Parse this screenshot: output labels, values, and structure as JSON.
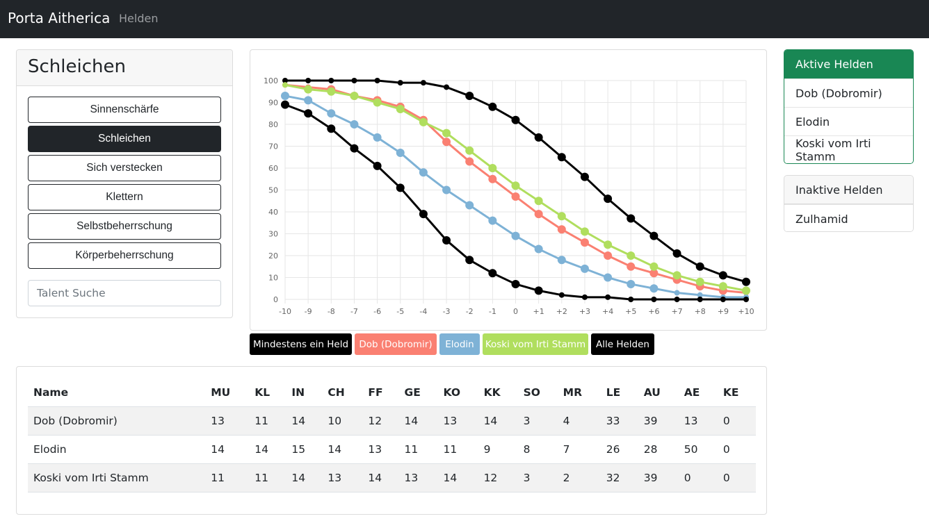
{
  "navbar": {
    "brand": "Porta Aitherica",
    "link_heroes": "Helden"
  },
  "talent_panel": {
    "title": "Schleichen",
    "buttons": [
      {
        "label": "Sinnenschärfe",
        "active": false
      },
      {
        "label": "Schleichen",
        "active": true
      },
      {
        "label": "Sich verstecken",
        "active": false
      },
      {
        "label": "Klettern",
        "active": false
      },
      {
        "label": "Selbstbeherrschung",
        "active": false
      },
      {
        "label": "Körperbeherrschung",
        "active": false
      }
    ],
    "search_placeholder": "Talent Suche"
  },
  "chart_data": {
    "type": "line",
    "categories": [
      "-10",
      "-9",
      "-8",
      "-7",
      "-6",
      "-5",
      "-4",
      "-3",
      "-2",
      "-1",
      "0",
      "+1",
      "+2",
      "+3",
      "+4",
      "+5",
      "+6",
      "+7",
      "+8",
      "+9",
      "+10"
    ],
    "ylim": [
      0,
      100
    ],
    "yticks": [
      0,
      10,
      20,
      30,
      40,
      50,
      60,
      70,
      80,
      90,
      100
    ],
    "grid": true,
    "series": [
      {
        "name": "Mindestens ein Held",
        "color": "#000000",
        "values": [
          100,
          100,
          100,
          100,
          100,
          99,
          99,
          97,
          93,
          88,
          82,
          74,
          65,
          56,
          46,
          37,
          29,
          21,
          15,
          11,
          8
        ]
      },
      {
        "name": "Dob (Dobromir)",
        "color": "#fa8072",
        "values": [
          98,
          97,
          96,
          93,
          91,
          88,
          82,
          72,
          63,
          55,
          47,
          39,
          32,
          26,
          20,
          15,
          12,
          9,
          6,
          4,
          3
        ]
      },
      {
        "name": "Elodin",
        "color": "#7eb2d6",
        "values": [
          93,
          91,
          85,
          80,
          74,
          67,
          58,
          50,
          43,
          36,
          29,
          23,
          18,
          14,
          10,
          7,
          5,
          3,
          2,
          1,
          1
        ]
      },
      {
        "name": "Koski vom Irti Stamm",
        "color": "#b0de5e",
        "values": [
          98,
          96,
          95,
          93,
          90,
          87,
          81,
          76,
          68,
          60,
          52,
          45,
          38,
          31,
          25,
          20,
          15,
          11,
          8,
          6,
          4
        ]
      },
      {
        "name": "Alle Helden",
        "color": "#000000",
        "values": [
          89,
          85,
          78,
          69,
          61,
          51,
          39,
          27,
          18,
          12,
          7,
          4,
          2,
          1,
          1,
          0,
          0,
          0,
          0,
          0,
          0
        ]
      }
    ]
  },
  "filters": [
    {
      "label": "Mindestens ein Held",
      "bg": "#000000",
      "fg": "#ffffff"
    },
    {
      "label": "Dob (Dobromir)",
      "bg": "#fa8072",
      "fg": "#ffffff"
    },
    {
      "label": "Elodin",
      "bg": "#7eb2d6",
      "fg": "#ffffff"
    },
    {
      "label": "Koski vom Irti Stamm",
      "bg": "#b0de5e",
      "fg": "#ffffff"
    },
    {
      "label": "Alle Helden",
      "bg": "#000000",
      "fg": "#ffffff"
    }
  ],
  "active_heroes": {
    "title": "Aktive Helden",
    "items": [
      "Dob (Dobromir)",
      "Elodin",
      "Koski vom Irti Stamm"
    ]
  },
  "inactive_heroes": {
    "title": "Inaktive Helden",
    "items": [
      "Zulhamid"
    ]
  },
  "table": {
    "headers": [
      "Name",
      "MU",
      "KL",
      "IN",
      "CH",
      "FF",
      "GE",
      "KO",
      "KK",
      "SO",
      "MR",
      "LE",
      "AU",
      "AE",
      "KE"
    ],
    "rows": [
      [
        "Dob (Dobromir)",
        "13",
        "11",
        "14",
        "10",
        "12",
        "14",
        "13",
        "14",
        "3",
        "4",
        "33",
        "39",
        "13",
        "0"
      ],
      [
        "Elodin",
        "14",
        "14",
        "15",
        "14",
        "13",
        "11",
        "11",
        "9",
        "8",
        "7",
        "26",
        "28",
        "50",
        "0"
      ],
      [
        "Koski vom Irti Stamm",
        "11",
        "11",
        "14",
        "13",
        "14",
        "13",
        "14",
        "12",
        "3",
        "2",
        "32",
        "39",
        "0",
        "0"
      ]
    ]
  }
}
